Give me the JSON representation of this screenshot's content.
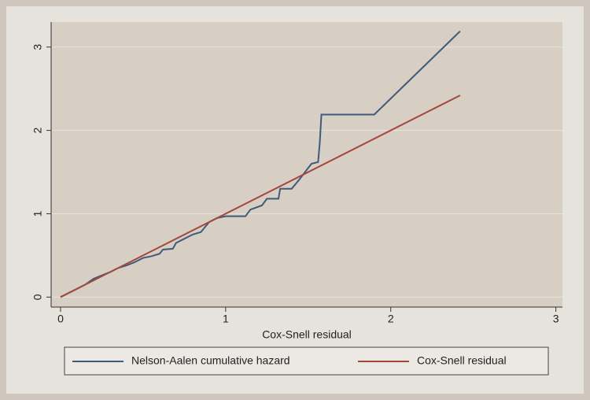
{
  "chart_data": {
    "type": "line",
    "xlabel": "Cox-Snell residual",
    "xlim": [
      -0.057,
      3.04
    ],
    "ylim": [
      -0.12,
      3.3
    ],
    "xticks": [
      0,
      1,
      2,
      3
    ],
    "yticks": [
      0,
      1,
      2,
      3
    ],
    "grid": true,
    "legend": "bottom",
    "series": [
      {
        "name": "Nelson-Aalen cumulative hazard",
        "color": "#3f5b7a",
        "x": [
          0,
          0.05,
          0.1,
          0.15,
          0.2,
          0.3,
          0.35,
          0.4,
          0.45,
          0.5,
          0.55,
          0.6,
          0.62,
          0.68,
          0.7,
          0.75,
          0.8,
          0.85,
          0.9,
          0.95,
          1.0,
          1.12,
          1.15,
          1.22,
          1.25,
          1.32,
          1.33,
          1.4,
          1.45,
          1.5,
          1.52,
          1.56,
          1.57,
          1.58,
          1.9,
          2.42
        ],
        "values": [
          0,
          0.05,
          0.1,
          0.15,
          0.22,
          0.3,
          0.35,
          0.38,
          0.42,
          0.47,
          0.49,
          0.52,
          0.57,
          0.58,
          0.65,
          0.7,
          0.75,
          0.78,
          0.9,
          0.95,
          0.97,
          0.97,
          1.05,
          1.1,
          1.18,
          1.18,
          1.3,
          1.3,
          1.42,
          1.55,
          1.6,
          1.62,
          1.85,
          2.19,
          2.19,
          3.19
        ]
      },
      {
        "name": "Cox-Snell residual",
        "color": "#a2483c",
        "x": [
          0,
          2.42
        ],
        "values": [
          0,
          2.42
        ]
      }
    ]
  }
}
